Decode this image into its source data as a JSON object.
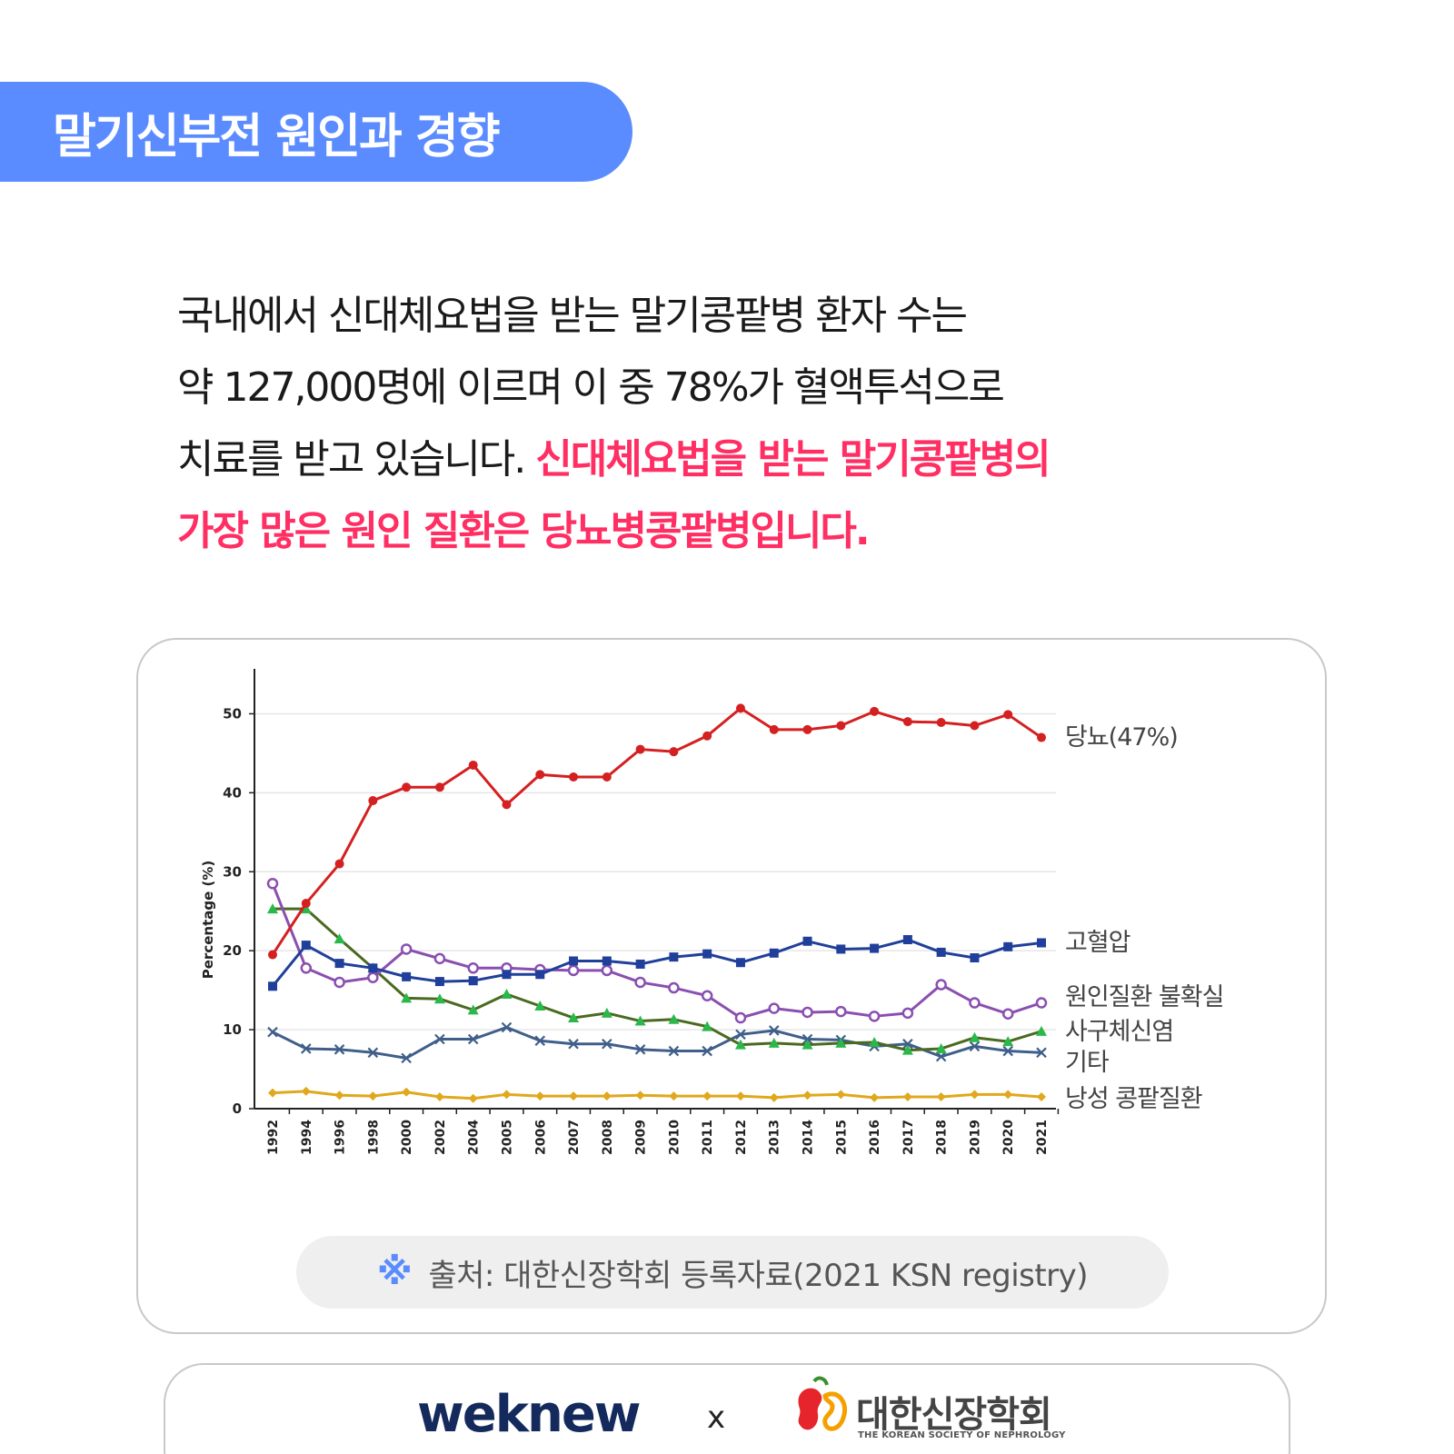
{
  "header": {
    "title": "말기신부전 원인과 경향"
  },
  "intro": {
    "line1": "국내에서 신대체요법을 받는 말기콩팥병 환자 수는",
    "line2": "약 127,000명에 이르며 이 중 78%가 혈액투석으로",
    "line3_plain": "치료를 받고 있습니다. ",
    "line3_highlight": "신대체요법을 받는 말기콩팥병의",
    "line4_highlight": "가장 많은 원인 질환은 당뇨병콩팥병입니다."
  },
  "chart_data": {
    "type": "line",
    "ylabel": "Percentage (%)",
    "xlabel": "",
    "ylim": [
      0,
      55
    ],
    "yticks": [
      0,
      10,
      20,
      30,
      40,
      50
    ],
    "grid": true,
    "x": [
      "1992",
      "1994",
      "1996",
      "1998",
      "2000",
      "2002",
      "2004",
      "2005",
      "2006",
      "2007",
      "2008",
      "2009",
      "2010",
      "2011",
      "2012",
      "2013",
      "2014",
      "2015",
      "2016",
      "2017",
      "2018",
      "2019",
      "2020",
      "2021"
    ],
    "series": [
      {
        "name": "당뇨(47%)",
        "color": "#d42020",
        "marker": "circle",
        "values": [
          19.5,
          26,
          31,
          39,
          40.7,
          40.7,
          43.5,
          38.5,
          42.3,
          42,
          42,
          45.5,
          45.2,
          47.2,
          50.7,
          48,
          48,
          48.5,
          50.3,
          49,
          48.9,
          48.5,
          49.9,
          47
        ]
      },
      {
        "name": "고혈압",
        "color": "#1f3f9a",
        "marker": "square",
        "values": [
          15.5,
          20.7,
          18.4,
          17.8,
          16.7,
          16.1,
          16.2,
          17,
          17,
          18.7,
          18.7,
          18.3,
          19.2,
          19.6,
          18.5,
          19.7,
          21.2,
          20.2,
          20.3,
          21.4,
          19.8,
          19.1,
          20.5,
          21
        ]
      },
      {
        "name": "원인질환 불확실",
        "color": "#8a4fb0",
        "marker": "ring",
        "values": [
          28.5,
          17.8,
          16,
          16.6,
          20.2,
          19,
          17.8,
          17.8,
          17.6,
          17.5,
          17.5,
          16,
          15.3,
          14.3,
          11.5,
          12.7,
          12.2,
          12.3,
          11.7,
          12.1,
          15.7,
          13.4,
          12,
          13.4
        ]
      },
      {
        "name": "사구체신염",
        "color": "#4a6a20",
        "marker": "triangle",
        "markerColor": "#2bb84a",
        "values": [
          25.3,
          25.3,
          21.5,
          17.8,
          14,
          13.9,
          12.5,
          14.5,
          13,
          11.5,
          12.1,
          11.1,
          11.3,
          10.4,
          8.1,
          8.3,
          8.1,
          8.3,
          8.4,
          7.4,
          7.6,
          9,
          8.5,
          9.8
        ]
      },
      {
        "name": "기타",
        "color": "#3f5f8a",
        "marker": "cross",
        "values": [
          9.7,
          7.6,
          7.5,
          7.1,
          6.4,
          8.8,
          8.8,
          10.3,
          8.6,
          8.2,
          8.2,
          7.5,
          7.3,
          7.3,
          9.4,
          9.9,
          8.8,
          8.7,
          7.9,
          8.2,
          6.6,
          7.9,
          7.3,
          7.1
        ]
      },
      {
        "name": "낭성 콩팥질환",
        "color": "#e0a81c",
        "marker": "diamond",
        "values": [
          2,
          2.2,
          1.7,
          1.6,
          2.1,
          1.5,
          1.3,
          1.8,
          1.6,
          1.6,
          1.6,
          1.7,
          1.6,
          1.6,
          1.6,
          1.4,
          1.7,
          1.8,
          1.4,
          1.5,
          1.5,
          1.8,
          1.8,
          1.5
        ]
      }
    ]
  },
  "source": {
    "mark": "※",
    "text": "출처: 대한신장학회 등록자료(2021 KSN registry)"
  },
  "footer": {
    "brand1": "weknew",
    "separator": "x",
    "brand2": "대한신장학회",
    "brand2_sub": "THE KOREAN SOCIETY OF NEPHROLOGY"
  },
  "colors": {
    "accent": "#5b8cff",
    "highlight": "#ff2e63"
  }
}
